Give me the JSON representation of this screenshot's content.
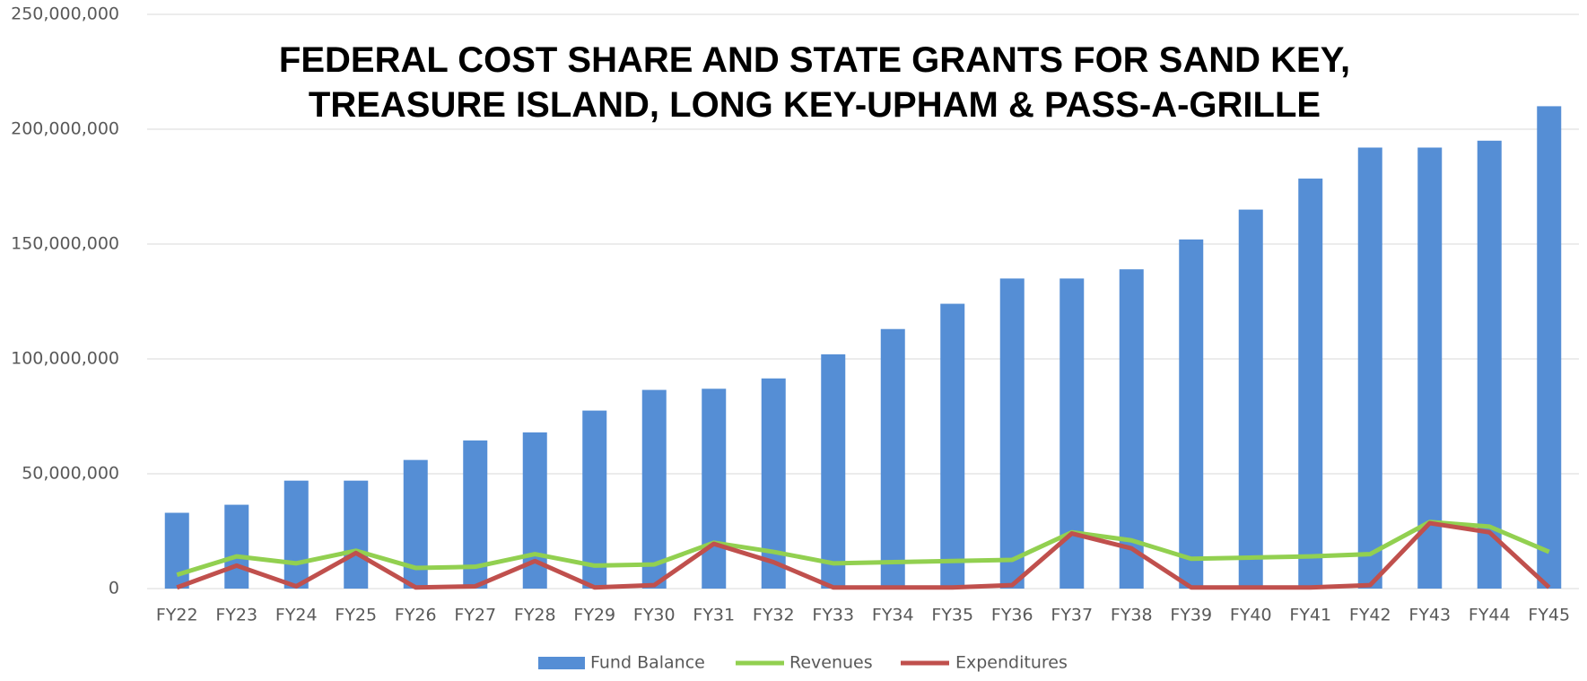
{
  "chart_data": {
    "type": "bar_line",
    "title": "FEDERAL COST SHARE AND STATE GRANTS FOR SAND KEY, TREASURE ISLAND, LONG KEY-UPHAM & PASS-A-GRILLE",
    "categories": [
      "FY22",
      "FY23",
      "FY24",
      "FY25",
      "FY26",
      "FY27",
      "FY28",
      "FY29",
      "FY30",
      "FY31",
      "FY32",
      "FY33",
      "FY34",
      "FY35",
      "FY36",
      "FY37",
      "FY38",
      "FY39",
      "FY40",
      "FY41",
      "FY42",
      "FY43",
      "FY44",
      "FY45"
    ],
    "series": [
      {
        "name": "Fund Balance",
        "type": "bar",
        "color": "#558ed5",
        "values": [
          33000000,
          36500000,
          47000000,
          47000000,
          56000000,
          64500000,
          68000000,
          77500000,
          86500000,
          87000000,
          91500000,
          102000000,
          113000000,
          124000000,
          135000000,
          135000000,
          139000000,
          152000000,
          165000000,
          178500000,
          192000000,
          192000000,
          195000000,
          210000000
        ]
      },
      {
        "name": "Revenues",
        "type": "line",
        "color": "#92d050",
        "values": [
          6000000,
          14000000,
          11000000,
          16500000,
          9000000,
          9500000,
          15000000,
          10000000,
          10500000,
          20000000,
          16000000,
          11000000,
          11500000,
          12000000,
          12500000,
          24500000,
          21000000,
          13000000,
          13500000,
          14000000,
          15000000,
          29000000,
          27000000,
          16000000
        ]
      },
      {
        "name": "Expenditures",
        "type": "line",
        "color": "#c0504d",
        "values": [
          500000,
          10000000,
          1000000,
          15500000,
          500000,
          1000000,
          12000000,
          500000,
          1500000,
          19500000,
          11500000,
          500000,
          500000,
          500000,
          1500000,
          24000000,
          17500000,
          500000,
          500000,
          500000,
          1500000,
          28500000,
          24500000,
          500000
        ]
      }
    ],
    "ylim": [
      0,
      250000000
    ],
    "yticks": [
      0,
      {
        "value": 50000000,
        "label": "50,000,000"
      },
      {
        "value": 100000000,
        "label": "100,000,000"
      },
      {
        "value": 150000000,
        "label": "150,000,000"
      },
      {
        "value": 200000000,
        "label": "200,000,000"
      },
      {
        "value": 250000000,
        "label": "250,000,000"
      }
    ],
    "grid": true,
    "legend": "bottom"
  }
}
